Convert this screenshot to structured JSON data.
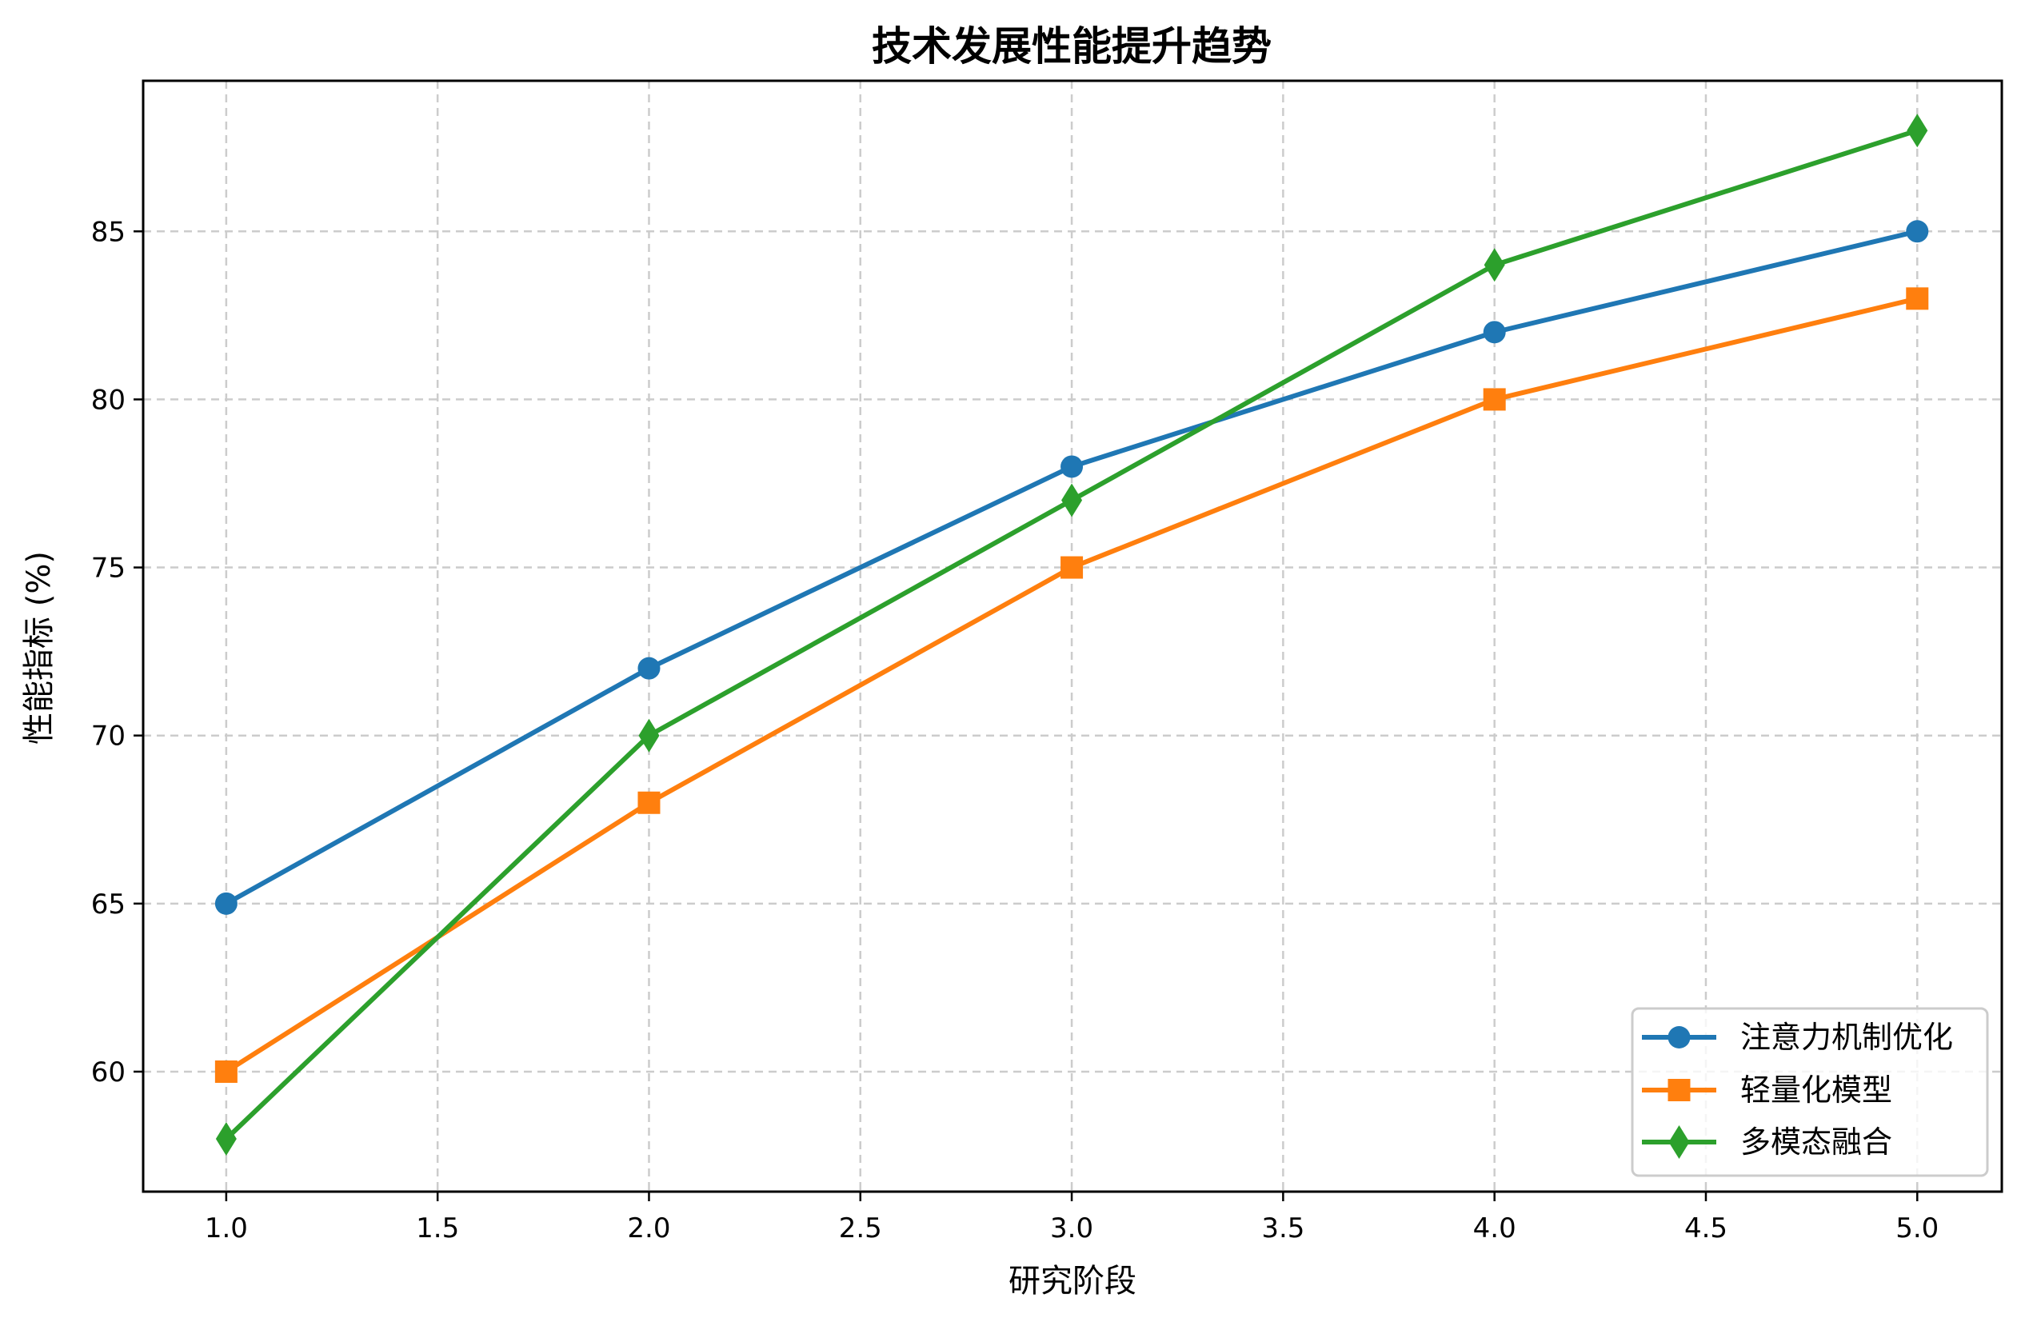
{
  "chart_data": {
    "type": "line",
    "title": "技术发展性能提升趋势",
    "xlabel": "研究阶段",
    "ylabel": "性能指标 (%)",
    "x": [
      1,
      2,
      3,
      4,
      5
    ],
    "series": [
      {
        "name": "注意力机制优化",
        "values": [
          65,
          72,
          78,
          82,
          85
        ],
        "color": "#1f77b4",
        "marker": "circle"
      },
      {
        "name": "轻量化模型",
        "values": [
          60,
          68,
          75,
          80,
          83
        ],
        "color": "#ff7f0e",
        "marker": "square"
      },
      {
        "name": "多模态融合",
        "values": [
          58,
          70,
          77,
          84,
          88
        ],
        "color": "#2ca02c",
        "marker": "diamond"
      }
    ],
    "xticks": [
      1.0,
      1.5,
      2.0,
      2.5,
      3.0,
      3.5,
      4.0,
      4.5,
      5.0
    ],
    "xtick_labels": [
      "1.0",
      "1.5",
      "2.0",
      "2.5",
      "3.0",
      "3.5",
      "4.0",
      "4.5",
      "5.0"
    ],
    "yticks": [
      60,
      65,
      70,
      75,
      80,
      85
    ],
    "ytick_labels": [
      "60",
      "65",
      "70",
      "75",
      "80",
      "85"
    ],
    "xlim": [
      0.8,
      5.2
    ],
    "ylim": [
      56.4,
      89.5
    ],
    "grid": true,
    "grid_style": "dashed",
    "legend_position": "lower right"
  }
}
